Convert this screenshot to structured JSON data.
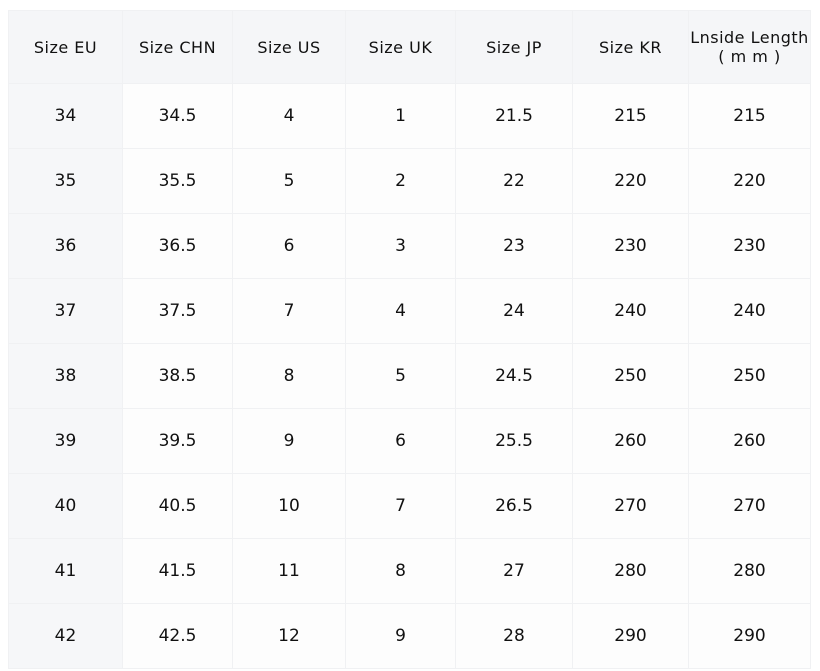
{
  "table": {
    "headers": [
      "Size EU",
      "Size CHN",
      "Size US",
      "Size UK",
      "Size JP",
      "Size KR",
      "Lnside Length"
    ],
    "last_header_unit": "( m m )",
    "rows": [
      [
        "34",
        "34.5",
        "4",
        "1",
        "21.5",
        "215",
        "215"
      ],
      [
        "35",
        "35.5",
        "5",
        "2",
        "22",
        "220",
        "220"
      ],
      [
        "36",
        "36.5",
        "6",
        "3",
        "23",
        "230",
        "230"
      ],
      [
        "37",
        "37.5",
        "7",
        "4",
        "24",
        "240",
        "240"
      ],
      [
        "38",
        "38.5",
        "8",
        "5",
        "24.5",
        "250",
        "250"
      ],
      [
        "39",
        "39.5",
        "9",
        "6",
        "25.5",
        "260",
        "260"
      ],
      [
        "40",
        "40.5",
        "10",
        "7",
        "26.5",
        "270",
        "270"
      ],
      [
        "41",
        "41.5",
        "11",
        "8",
        "27",
        "280",
        "280"
      ],
      [
        "42",
        "42.5",
        "12",
        "9",
        "28",
        "290",
        "290"
      ]
    ]
  }
}
